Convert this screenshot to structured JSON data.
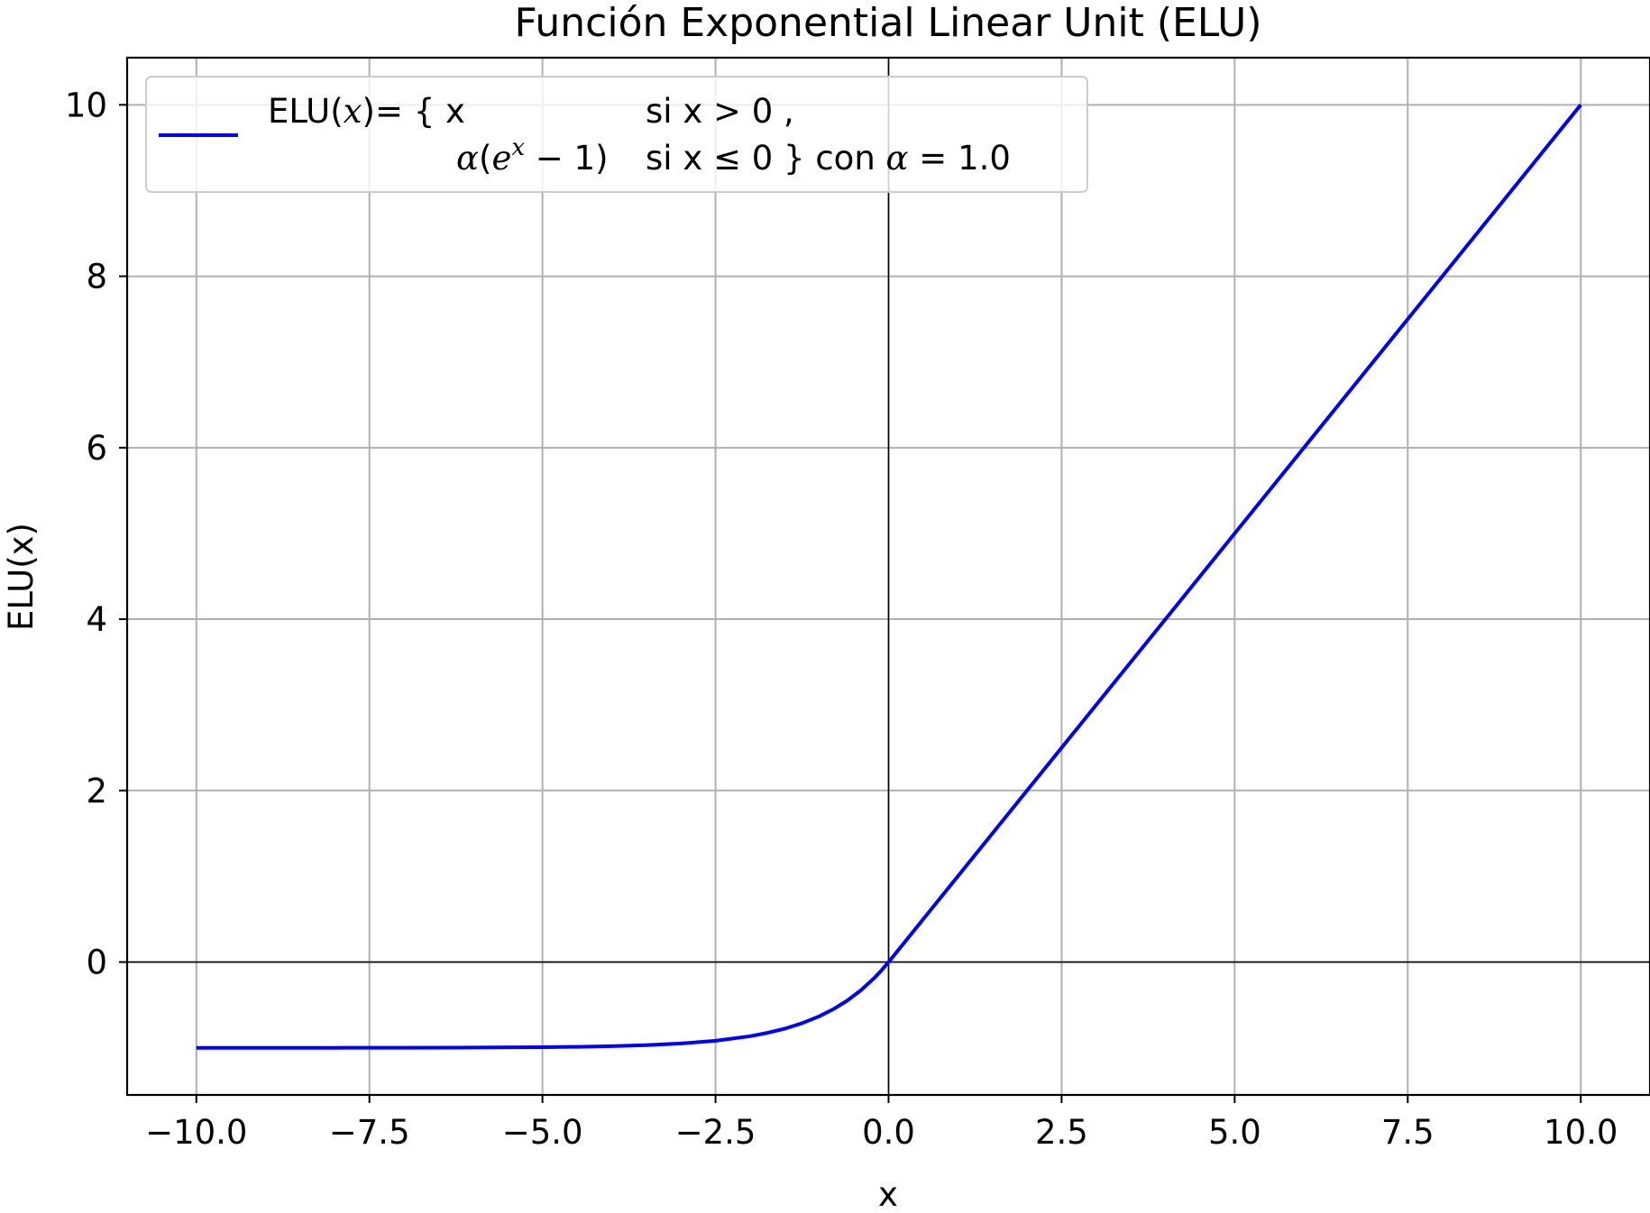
{
  "chart_data": {
    "type": "line",
    "title": "Función Exponential Linear Unit (ELU)",
    "xlabel": "x",
    "ylabel": "ELU(x)",
    "xlim": [
      -11,
      11
    ],
    "ylim": [
      -1.55,
      10.55
    ],
    "x_ticks": [
      -10.0,
      -7.5,
      -5.0,
      -2.5,
      0.0,
      2.5,
      5.0,
      7.5,
      10.0
    ],
    "x_tick_labels": [
      "−10.0",
      "−7.5",
      "−5.0",
      "−2.5",
      "0.0",
      "2.5",
      "5.0",
      "7.5",
      "10.0"
    ],
    "y_ticks": [
      0,
      2,
      4,
      6,
      8,
      10
    ],
    "y_tick_labels": [
      "0",
      "2",
      "4",
      "6",
      "8",
      "10"
    ],
    "grid": true,
    "reference_lines": {
      "x_zero": true,
      "y_zero": true
    },
    "legend_position": "top-left",
    "series": [
      {
        "name": "ELU(x)= { x si x > 0 , α(e^x − 1) si x ≤ 0 } con α = 1.0",
        "color": "#0000ff",
        "x": [
          -10.0,
          -9.0,
          -8.0,
          -7.0,
          -6.0,
          -5.0,
          -4.5,
          -4.0,
          -3.5,
          -3.0,
          -2.5,
          -2.0,
          -1.75,
          -1.5,
          -1.25,
          -1.0,
          -0.8,
          -0.6,
          -0.4,
          -0.2,
          -0.1,
          0.0,
          2.5,
          5.0,
          7.5,
          10.0
        ],
        "y": [
          -1.0,
          -0.9999,
          -0.9997,
          -0.9991,
          -0.9975,
          -0.9933,
          -0.9889,
          -0.9817,
          -0.9698,
          -0.9502,
          -0.9179,
          -0.8647,
          -0.8262,
          -0.7769,
          -0.7135,
          -0.6321,
          -0.5507,
          -0.4512,
          -0.3297,
          -0.1813,
          -0.0952,
          0.0,
          2.5,
          5.0,
          7.5,
          10.0
        ]
      }
    ]
  },
  "legend": {
    "line1_prefix": "ELU(",
    "line1_var": "x",
    "line1_mid": ")= { x",
    "line1_cond": "si x > 0 ,",
    "line2_alpha": "α",
    "line2_open": "(",
    "line2_e": "e",
    "line2_sup": "x",
    "line2_minus": " − 1)",
    "line2_cond": "si x  ≤  0 } con",
    "line2_alpha2": "α",
    "line2_eq": " = 1.0"
  }
}
